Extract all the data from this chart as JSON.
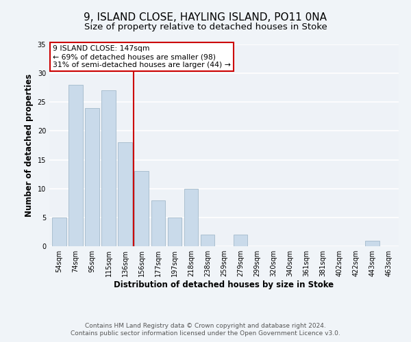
{
  "title": "9, ISLAND CLOSE, HAYLING ISLAND, PO11 0NA",
  "subtitle": "Size of property relative to detached houses in Stoke",
  "xlabel": "Distribution of detached houses by size in Stoke",
  "ylabel": "Number of detached properties",
  "bar_labels": [
    "54sqm",
    "74sqm",
    "95sqm",
    "115sqm",
    "136sqm",
    "156sqm",
    "177sqm",
    "197sqm",
    "218sqm",
    "238sqm",
    "259sqm",
    "279sqm",
    "299sqm",
    "320sqm",
    "340sqm",
    "361sqm",
    "381sqm",
    "402sqm",
    "422sqm",
    "443sqm",
    "463sqm"
  ],
  "bar_values": [
    5,
    28,
    24,
    27,
    18,
    13,
    8,
    5,
    10,
    2,
    0,
    2,
    0,
    0,
    0,
    0,
    0,
    0,
    0,
    1,
    0
  ],
  "bar_color": "#c9daea",
  "bar_edgecolor": "#aabfcf",
  "vline_x": 4.5,
  "vline_color": "#cc0000",
  "annotation_title": "9 ISLAND CLOSE: 147sqm",
  "annotation_line1": "← 69% of detached houses are smaller (98)",
  "annotation_line2": "31% of semi-detached houses are larger (44) →",
  "annotation_box_facecolor": "#ffffff",
  "annotation_box_edgecolor": "#cc0000",
  "ylim": [
    0,
    35
  ],
  "yticks": [
    0,
    5,
    10,
    15,
    20,
    25,
    30,
    35
  ],
  "footer1": "Contains HM Land Registry data © Crown copyright and database right 2024.",
  "footer2": "Contains public sector information licensed under the Open Government Licence v3.0.",
  "bg_color": "#f0f4f8",
  "plot_bg_color": "#eef2f7",
  "title_fontsize": 11,
  "subtitle_fontsize": 9.5,
  "footer_fontsize": 6.5,
  "axis_label_fontsize": 8.5,
  "tick_fontsize": 7,
  "annotation_fontsize": 7.8
}
